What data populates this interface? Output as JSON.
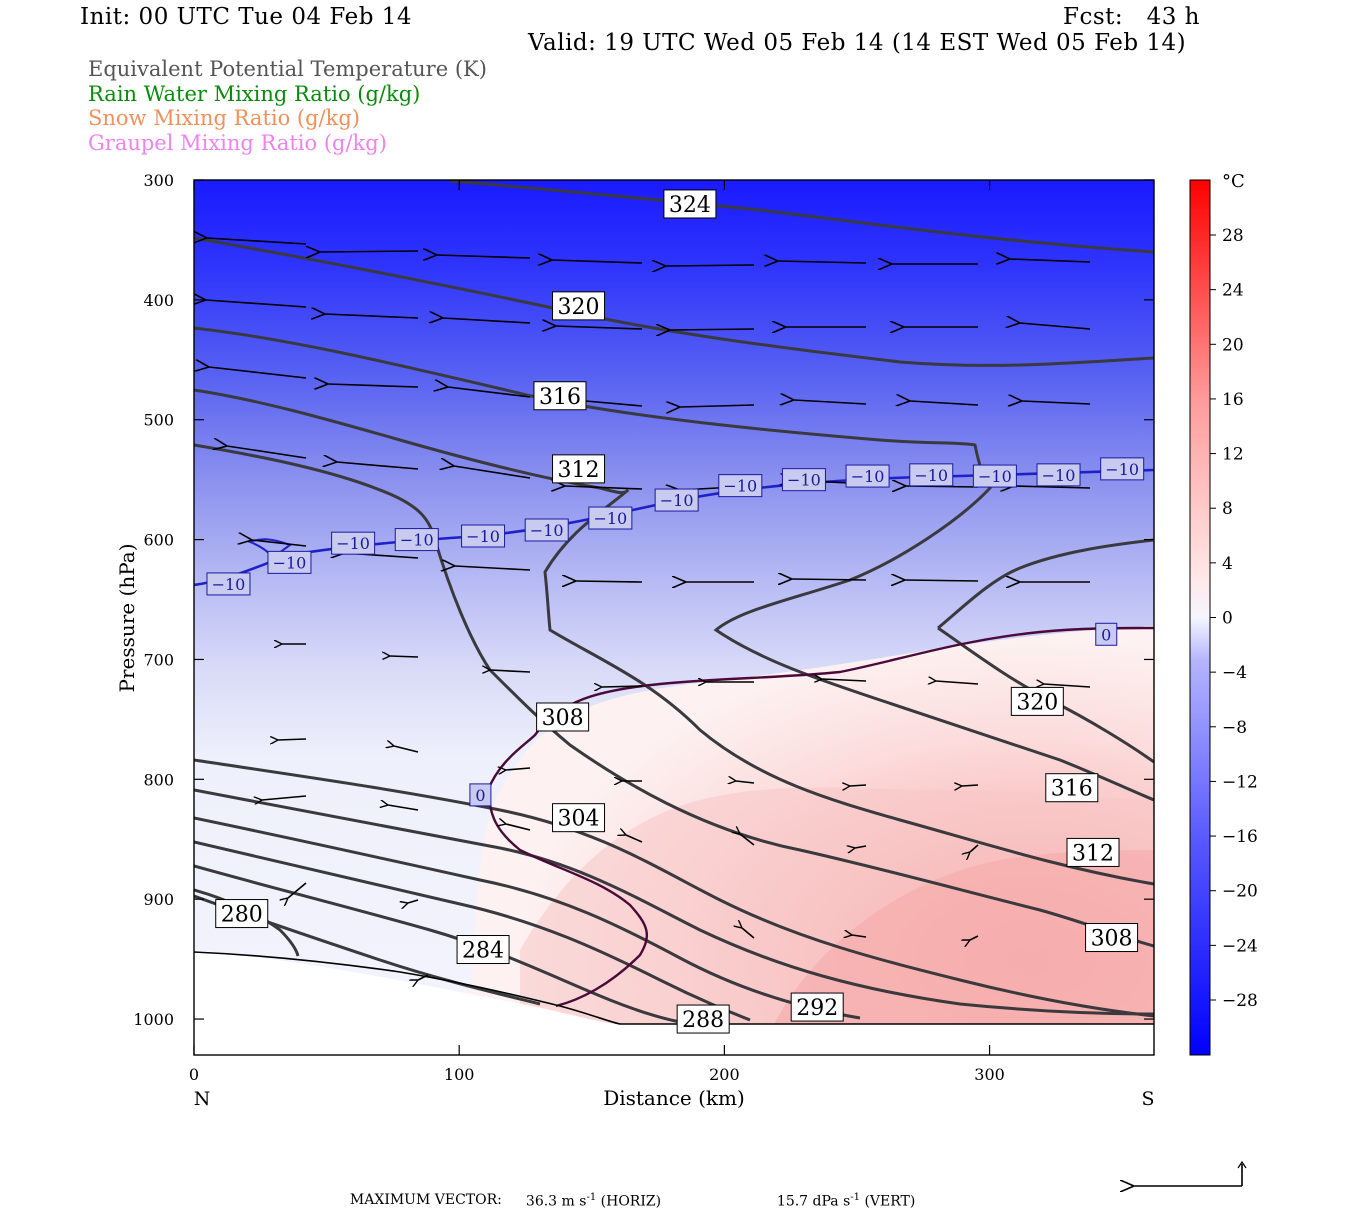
{
  "header": {
    "init": "Init: 00 UTC Tue 04 Feb 14",
    "fcst": "Fcst:   43 h",
    "valid": "Valid: 19 UTC Wed 05 Feb 14 (14 EST Wed 05 Feb 14)"
  },
  "legend": [
    {
      "text": "Equivalent Potential Temperature (K)",
      "color": "#555555"
    },
    {
      "text": "Rain Water Mixing Ratio (g/kg)",
      "color": "#0a8a0a"
    },
    {
      "text": "Snow Mixing Ratio (g/kg)",
      "color": "#f0905a"
    },
    {
      "text": "Graupel Mixing Ratio (g/kg)",
      "color": "#ee82ee"
    }
  ],
  "colorbar": {
    "unit": "°C",
    "ticks": [
      "28",
      "24",
      "20",
      "16",
      "12",
      "8",
      "4",
      "0",
      "−4",
      "−8",
      "−12",
      "−16",
      "−20",
      "−24",
      "−28"
    ]
  },
  "footer": {
    "max_vector_label": "MAXIMUM VECTOR:",
    "horiz_value": "36.3 m s",
    "horiz_exp": "-1",
    "horiz_tag": "(HORIZ)",
    "vert_value": "15.7 dPa s",
    "vert_exp": "-1",
    "vert_tag": "(VERT)"
  },
  "chart_data": {
    "type": "cross-section",
    "xlabel": "Distance (km)",
    "ylabel": "Pressure (hPa)",
    "xlim": [
      0,
      362
    ],
    "ylim": [
      1030,
      300
    ],
    "x_ticks": [
      "0",
      "100",
      "200",
      "300"
    ],
    "x_tick_values": [
      0,
      100,
      200,
      300
    ],
    "y_ticks": [
      "300",
      "400",
      "500",
      "600",
      "700",
      "800",
      "900",
      "1000"
    ],
    "y_tick_values": [
      300,
      400,
      500,
      600,
      700,
      800,
      900,
      1000
    ],
    "left_end_label": "N",
    "right_end_label": "S",
    "theta_e_labels": [
      {
        "text": "324",
        "x": 187,
        "p": 320
      },
      {
        "text": "320",
        "x": 145,
        "p": 405
      },
      {
        "text": "316",
        "x": 138,
        "p": 480
      },
      {
        "text": "312",
        "x": 145,
        "p": 541
      },
      {
        "text": "308",
        "x": 139,
        "p": 748
      },
      {
        "text": "304",
        "x": 145,
        "p": 832
      },
      {
        "text": "280",
        "x": 18,
        "p": 912
      },
      {
        "text": "284",
        "x": 109,
        "p": 942
      },
      {
        "text": "288",
        "x": 192,
        "p": 1000
      },
      {
        "text": "292",
        "x": 235,
        "p": 990
      },
      {
        "text": "320",
        "x": 318,
        "p": 735
      },
      {
        "text": "316",
        "x": 331,
        "p": 807
      },
      {
        "text": "312",
        "x": 339,
        "p": 861
      },
      {
        "text": "308",
        "x": 346,
        "p": 932
      }
    ],
    "isotherm_labels": [
      {
        "text": "−10",
        "x": 13,
        "p": 637
      },
      {
        "text": "−10",
        "x": 36,
        "p": 619
      },
      {
        "text": "−10",
        "x": 60,
        "p": 603
      },
      {
        "text": "−10",
        "x": 84,
        "p": 600
      },
      {
        "text": "−10",
        "x": 109,
        "p": 597
      },
      {
        "text": "−10",
        "x": 133,
        "p": 592
      },
      {
        "text": "−10",
        "x": 157,
        "p": 582
      },
      {
        "text": "−10",
        "x": 182,
        "p": 567
      },
      {
        "text": "−10",
        "x": 206,
        "p": 555
      },
      {
        "text": "−10",
        "x": 230,
        "p": 550
      },
      {
        "text": "−10",
        "x": 254,
        "p": 547
      },
      {
        "text": "−10",
        "x": 278,
        "p": 546
      },
      {
        "text": "−10",
        "x": 302,
        "p": 547
      },
      {
        "text": "−10",
        "x": 326,
        "p": 546
      },
      {
        "text": "−10",
        "x": 350,
        "p": 541
      },
      {
        "text": "0",
        "x": 108,
        "p": 813
      },
      {
        "text": "0",
        "x": 344,
        "p": 679
      }
    ]
  }
}
